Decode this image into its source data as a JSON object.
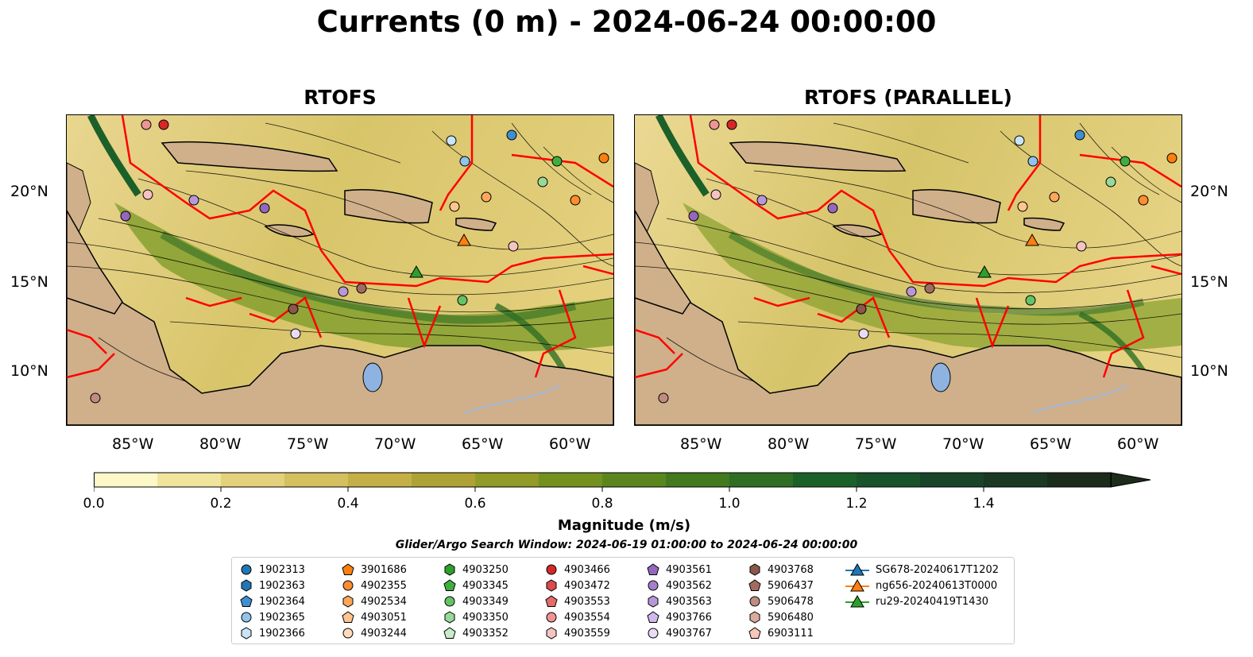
{
  "title": "Currents (0 m) - 2024-06-24 00:00:00",
  "panels": [
    {
      "title": "RTOFS"
    },
    {
      "title": "RTOFS (PARALLEL)"
    }
  ],
  "lat_labels": [
    "20°N",
    "15°N",
    "10°N"
  ],
  "lon_labels": [
    "85°W",
    "80°W",
    "75°W",
    "70°W",
    "65°W",
    "60°W"
  ],
  "colorbar": {
    "label": "Magnitude (m/s)",
    "ticks": [
      "0.0",
      "0.2",
      "0.4",
      "0.6",
      "0.8",
      "1.0",
      "1.2",
      "1.4"
    ],
    "range": [
      0,
      1.6
    ],
    "colors": [
      "#fcf8c8",
      "#f1e49c",
      "#e4d17c",
      "#d5bf5e",
      "#c5b047",
      "#aea235",
      "#929a28",
      "#749120",
      "#5b861e",
      "#43791f",
      "#2f6e24",
      "#1c6029",
      "#18532b",
      "#184427",
      "#1a3822",
      "#1b2c1b"
    ]
  },
  "window_text": "Glider/Argo Search Window: 2024-06-19 01:00:00 to 2024-06-24 00:00:00",
  "legend": [
    {
      "label": "1902313",
      "marker": "circle",
      "color": "#1f77b4"
    },
    {
      "label": "1902363",
      "marker": "hexagon",
      "color": "#1f77b4"
    },
    {
      "label": "1902364",
      "marker": "pentagon",
      "color": "#3f8fd0"
    },
    {
      "label": "1902365",
      "marker": "circle",
      "color": "#8fc4ec"
    },
    {
      "label": "1902366",
      "marker": "hexagon",
      "color": "#c9e3f7"
    },
    {
      "label": "3901686",
      "marker": "pentagon",
      "color": "#ff7f0e"
    },
    {
      "label": "4902355",
      "marker": "circle",
      "color": "#ff8c2e"
    },
    {
      "label": "4902534",
      "marker": "hexagon",
      "color": "#ffa75a"
    },
    {
      "label": "4903051",
      "marker": "pentagon",
      "color": "#ffc58f"
    },
    {
      "label": "4903244",
      "marker": "circle",
      "color": "#ffdcbc"
    },
    {
      "label": "4903250",
      "marker": "hexagon",
      "color": "#2ca02c"
    },
    {
      "label": "4903345",
      "marker": "pentagon",
      "color": "#3fae3f"
    },
    {
      "label": "4903349",
      "marker": "circle",
      "color": "#66c266"
    },
    {
      "label": "4903350",
      "marker": "hexagon",
      "color": "#98d898"
    },
    {
      "label": "4903352",
      "marker": "pentagon",
      "color": "#c7ecc7"
    },
    {
      "label": "4903466",
      "marker": "circle",
      "color": "#d62728"
    },
    {
      "label": "4903472",
      "marker": "hexagon",
      "color": "#dc4a4b"
    },
    {
      "label": "4903553",
      "marker": "pentagon",
      "color": "#e56b6b"
    },
    {
      "label": "4903554",
      "marker": "circle",
      "color": "#ee9494"
    },
    {
      "label": "4903559",
      "marker": "hexagon",
      "color": "#f6c3c3"
    },
    {
      "label": "4903561",
      "marker": "pentagon",
      "color": "#9467bd"
    },
    {
      "label": "4903562",
      "marker": "circle",
      "color": "#a67fcb"
    },
    {
      "label": "4903563",
      "marker": "hexagon",
      "color": "#b897d9"
    },
    {
      "label": "4903766",
      "marker": "pentagon",
      "color": "#d0b8ea"
    },
    {
      "label": "4903767",
      "marker": "circle",
      "color": "#e9dcf7"
    },
    {
      "label": "4903768",
      "marker": "hexagon",
      "color": "#8c564b"
    },
    {
      "label": "5906437",
      "marker": "pentagon",
      "color": "#a26b60"
    },
    {
      "label": "5906478",
      "marker": "circle",
      "color": "#c08c80"
    },
    {
      "label": "5906480",
      "marker": "hexagon",
      "color": "#dba99e"
    },
    {
      "label": "6903111",
      "marker": "pentagon",
      "color": "#f7c6b8"
    },
    {
      "label": "SG678-20240617T1202",
      "marker": "triangle",
      "color": "#1f77b4"
    },
    {
      "label": "ng656-20240613T0000",
      "marker": "triangle",
      "color": "#ff7f0e"
    },
    {
      "label": "ru29-20240419T1430",
      "marker": "triangle",
      "color": "#2ca02c"
    }
  ],
  "colors": {
    "land": "#cfb08a",
    "border": "#ff0000",
    "lake": "#8fb3e0",
    "river": "#a0b8d8"
  }
}
